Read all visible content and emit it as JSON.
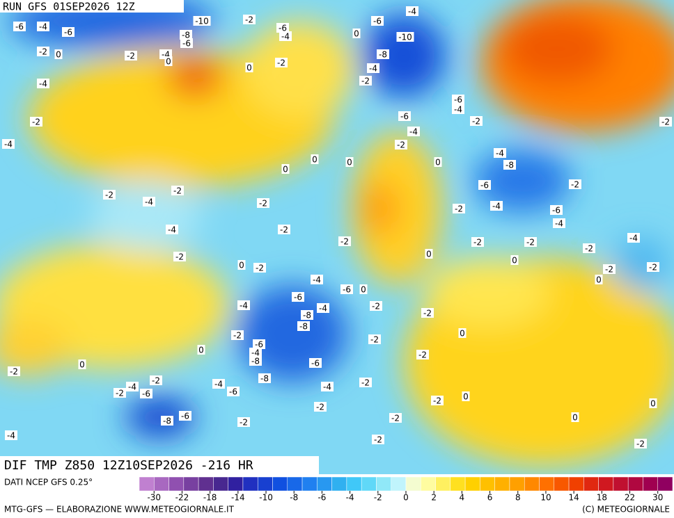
{
  "header": {
    "run": "RUN GFS 01SEP2026 12Z",
    "title": "DIF TMP Z850 12Z10SEP2026 -216 HR"
  },
  "map": {
    "labels": [
      "-6",
      "-4",
      "-6",
      "-10",
      "-2",
      "-6",
      "-4",
      "-8",
      "-6",
      "-2",
      "0",
      "-4",
      "0",
      "-2",
      "0",
      "-2",
      "0",
      "-6",
      "-4",
      "-10",
      "-8",
      "-4",
      "-2",
      "-4",
      "-2",
      "-4",
      "-6",
      "-4",
      "-6",
      "-4",
      "-2",
      "-2",
      "0",
      "0",
      "0",
      "0",
      "-4",
      "-8",
      "-2",
      "-6",
      "-4",
      "-6",
      "-4",
      "-2",
      "-2",
      "-4",
      "-2",
      "-2",
      "-4",
      "-2",
      "-2",
      "-2",
      "-2",
      "-2",
      "-4",
      "-2",
      "0",
      "-2",
      "0",
      "0",
      "-2",
      "-2",
      "0",
      "-4",
      "-6",
      "0",
      "-6",
      "-4",
      "-8",
      "-4",
      "-8",
      "-2",
      "-2",
      "0",
      "-2",
      "-6",
      "-4",
      "-8",
      "-2",
      "-2",
      "-6",
      "0",
      "0",
      "-2",
      "-2",
      "-2",
      "-4",
      "-6",
      "-4",
      "-6",
      "-8",
      "-4",
      "-2",
      "-2",
      "-2",
      "0",
      "-8",
      "-6",
      "-2",
      "-2",
      "0",
      "0",
      "-2",
      "-4",
      "-2",
      "-2"
    ]
  },
  "legend": {
    "source": "DATI NCEP GFS 0.25°",
    "ticks": [
      -30,
      -22,
      -18,
      -14,
      -10,
      -8,
      -6,
      -4,
      -2,
      0,
      2,
      4,
      6,
      8,
      10,
      14,
      18,
      22,
      30
    ],
    "colors": [
      "#c080d0",
      "#a868c0",
      "#9050b0",
      "#7840a0",
      "#603090",
      "#482890",
      "#3020a0",
      "#2030c0",
      "#1840d0",
      "#1050e0",
      "#1868e8",
      "#2080f0",
      "#2898f0",
      "#30b0f0",
      "#40c8f8",
      "#60d8f8",
      "#90e8f8",
      "#c0f4fc",
      "#f4fcd0",
      "#fffca0",
      "#fff060",
      "#ffe020",
      "#ffd000",
      "#ffc000",
      "#ffb000",
      "#ffa000",
      "#ff8800",
      "#ff7000",
      "#f85800",
      "#f04000",
      "#e02810",
      "#d01820",
      "#c01030",
      "#b00840",
      "#a00050",
      "#900060"
    ],
    "footer_left": "MTG-GFS — ELABORAZIONE WWW.METEOGIORNALE.IT",
    "footer_right": "(C) METEOGIORNALE"
  }
}
